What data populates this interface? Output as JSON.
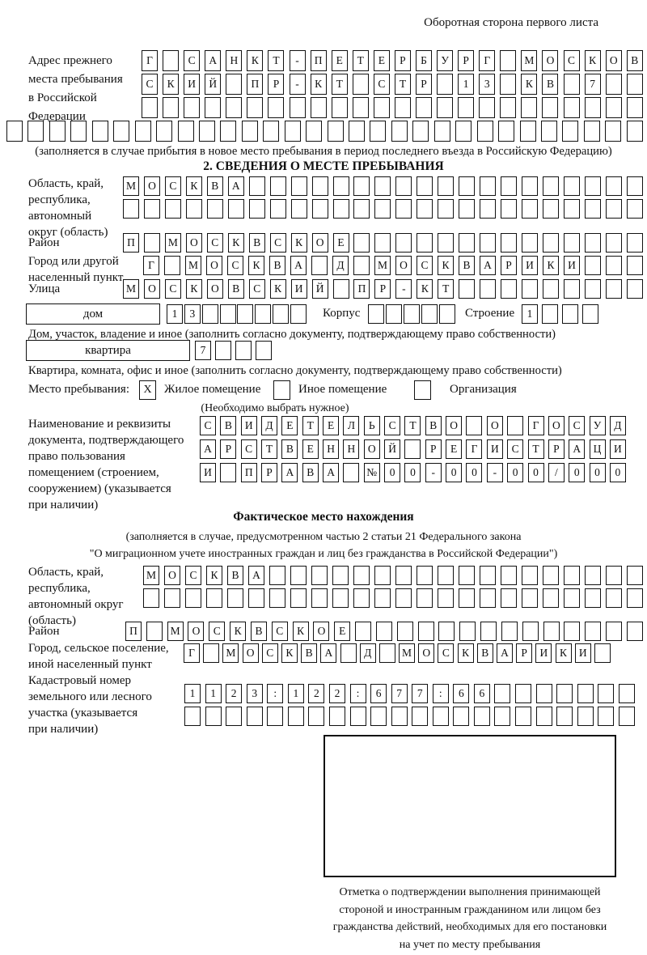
{
  "header": {
    "note": "Оборотная сторона первого листа"
  },
  "prev_address": {
    "label": "Адрес прежнего\nместа пребывания\nв Российской\nФедерации",
    "row1": "Г САНКТ-ПЕТЕРБУРГ МОСКОВ",
    "row2": "СКИЙ ПР-КТ СТР 13 КВ 7",
    "row3": "",
    "row4": "",
    "note": "(заполняется в случае прибытия в новое место пребывания в период последнего въезда в Российскую Федерацию)"
  },
  "section2": {
    "title": "2. СВЕДЕНИЯ О МЕСТЕ ПРЕБЫВАНИЯ",
    "region": {
      "label": "Область, край,\nреспублика,\nавтономный\nокруг (область)",
      "row1": "МОСКВА",
      "row2": ""
    },
    "district": {
      "label": "Район",
      "row": "П МОСКВСКОЕ"
    },
    "city": {
      "label": "Город или другой\nнаселенный пункт",
      "row": "Г МОСКВА Д МОСКВАРИКИ"
    },
    "street": {
      "label": "Улица",
      "row": "МОСКОВСКИЙ ПР-КТ"
    },
    "house": {
      "box_label": "дом",
      "cells": "13",
      "korpus_label": "Корпус",
      "korpus_cells": "",
      "stroenie_label": "Строение",
      "stroenie_cells": "1",
      "note": "Дом, участок, владение и иное (заполнить согласно документу, подтверждающему право собственности)"
    },
    "apartment": {
      "box_label": "квартира",
      "cells": "7",
      "note": "Квартира, комната, офис и иное (заполнить согласно документу, подтверждающему право собственности)"
    },
    "stay_type": {
      "label": "Место пребывания:",
      "checked_mark": "X",
      "options": [
        "Жилое помещение",
        "Иное помещение",
        "Организация"
      ],
      "note": "(Необходимо выбрать нужное)"
    },
    "document": {
      "label": "Наименование и реквизиты\nдокумента, подтверждающего\nправо пользования\nпомещением (строением,\nсооружением) (указывается\nпри наличии)",
      "row1": "СВИДЕТЕЛЬСТВО О ГОСУД",
      "row2": "АРСТВЕННОЙ РЕГИСТРАЦИ",
      "row3": "И ПРАВА №00-00-00/000"
    }
  },
  "actual_location": {
    "title": "Фактическое место нахождения",
    "note1": "(заполняется в случае, предусмотренном частью 2 статьи 21 Федерального закона",
    "note2": "\"О миграционном учете иностранных граждан и лиц без гражданства в Российской Федерации\")",
    "region": {
      "label": "Область, край,\nреспублика,\nавтономный округ\n(область)",
      "row1": "МОСКВА",
      "row2": ""
    },
    "district": {
      "label": "Район",
      "row": "П МОСКВСКОЕ"
    },
    "city": {
      "label": "Город, сельское поселение,\nиной населенный пункт",
      "row": "Г МОСКВА Д МОСКВАРИКИ"
    },
    "cadastral": {
      "label": "Кадастровый номер\nземельного или лесного\nучастка (указывается\nпри наличии)",
      "row1": "1123:122:677:66",
      "row2": ""
    },
    "stamp_note": "Отметка о подтверждении выполнения принимающей\nстороной и иностранным гражданином или лицом без\nгражданства действий, необходимых для его постановки\nна учет по месту пребывания"
  }
}
